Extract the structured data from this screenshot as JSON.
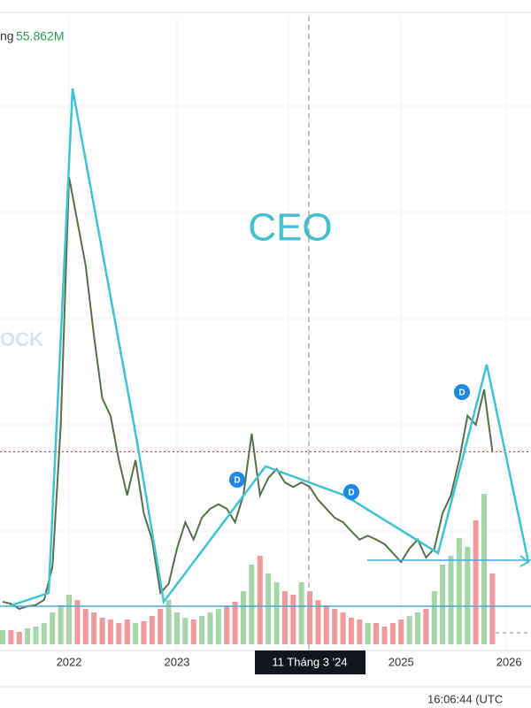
{
  "chart_data": {
    "type": "line",
    "symbol": "CEO",
    "volume_label_prefix": "ng",
    "volume_label": "55.862M",
    "crosshair_label": "11 Tháng 3 '24",
    "clock": "16:06:44 (UTC",
    "watermark": "OCK",
    "categories": [
      null,
      null,
      null,
      null,
      null,
      null,
      null,
      null,
      "2022",
      null,
      null,
      null,
      null,
      null,
      null,
      null,
      null,
      null,
      null,
      null,
      null,
      "2023",
      null,
      null,
      null,
      null,
      null,
      null,
      null,
      null,
      null,
      null,
      null,
      null,
      null,
      null,
      null,
      null,
      null,
      null,
      null,
      null,
      null,
      null,
      null,
      null,
      null,
      null,
      "2025",
      null,
      null,
      null,
      null,
      null,
      null,
      null,
      null,
      null,
      null,
      null,
      null,
      "2026"
    ],
    "values": [
      10.0,
      9.7,
      8.9,
      9.3,
      9.5,
      10.3,
      15.5,
      37.6,
      76.2,
      69.3,
      62.4,
      51.4,
      41.7,
      39.0,
      32.1,
      26.6,
      32.1,
      23.8,
      19.7,
      11.4,
      12.8,
      18.3,
      22.4,
      19.7,
      23.1,
      24.5,
      25.2,
      24.5,
      22.4,
      26.6,
      36.2,
      26.6,
      29.3,
      30.7,
      28.6,
      27.9,
      28.6,
      27.9,
      25.9,
      24.5,
      23.1,
      22.4,
      21.0,
      19.7,
      20.3,
      19.7,
      19.0,
      17.6,
      16.2,
      18.3,
      19.7,
      16.9,
      18.3,
      23.8,
      26.6,
      32.1,
      39.0,
      37.6,
      43.1,
      33.4,
      null,
      null
    ],
    "color": "#55704a",
    "ylim": [
      0,
      100
    ],
    "last_price_color": "#c62828",
    "volume": {
      "values": [
        8,
        8,
        7,
        9,
        10,
        12,
        18,
        22,
        28,
        25,
        20,
        18,
        15,
        14,
        12,
        14,
        12,
        13,
        16,
        20,
        25,
        18,
        15,
        14,
        16,
        18,
        20,
        22,
        24,
        30,
        45,
        50,
        40,
        35,
        30,
        28,
        35,
        30,
        25,
        22,
        20,
        18,
        15,
        14,
        12,
        12,
        10,
        12,
        14,
        16,
        18,
        20,
        30,
        45,
        50,
        60,
        55,
        70,
        85,
        40,
        null,
        null
      ],
      "ylim": [
        0,
        100
      ],
      "up_color": "#a5d6a7",
      "down_color": "#ef9a9a"
    }
  }
}
